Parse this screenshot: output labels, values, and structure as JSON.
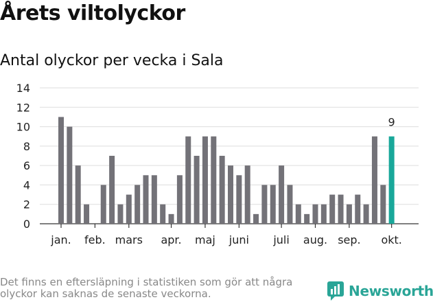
{
  "header": {
    "title": "Årets viltolyckor",
    "subtitle": "Antal olyckor per vecka i Sala"
  },
  "chart_data": {
    "type": "bar",
    "values": [
      11,
      10,
      6,
      2,
      0,
      4,
      7,
      2,
      3,
      4,
      5,
      5,
      2,
      1,
      5,
      9,
      7,
      9,
      9,
      7,
      6,
      5,
      6,
      1,
      4,
      4,
      6,
      4,
      2,
      1,
      2,
      2,
      3,
      3,
      2,
      3,
      2,
      9,
      4,
      9
    ],
    "month_ticks": [
      {
        "label": "jan.",
        "index": 0
      },
      {
        "label": "feb.",
        "index": 4
      },
      {
        "label": "mars",
        "index": 8
      },
      {
        "label": "apr.",
        "index": 13
      },
      {
        "label": "maj",
        "index": 17
      },
      {
        "label": "juni",
        "index": 21
      },
      {
        "label": "juli",
        "index": 26
      },
      {
        "label": "aug.",
        "index": 30
      },
      {
        "label": "sep.",
        "index": 34
      },
      {
        "label": "okt.",
        "index": 39
      }
    ],
    "ylim": [
      0,
      14
    ],
    "yticks": [
      0,
      2,
      4,
      6,
      8,
      10,
      12,
      14
    ],
    "grid": true,
    "highlight_label": "9",
    "colors": {
      "bar": "#737278",
      "highlight": "#19a89a",
      "grid": "#dddddd"
    }
  },
  "footer": {
    "footnote": "Det finns en eftersläpning i statistiken som gör att några olyckor kan saknas de senaste veckorna.",
    "brand": "Newsworthy",
    "brand_icon": "newsworthy-logo-icon"
  }
}
